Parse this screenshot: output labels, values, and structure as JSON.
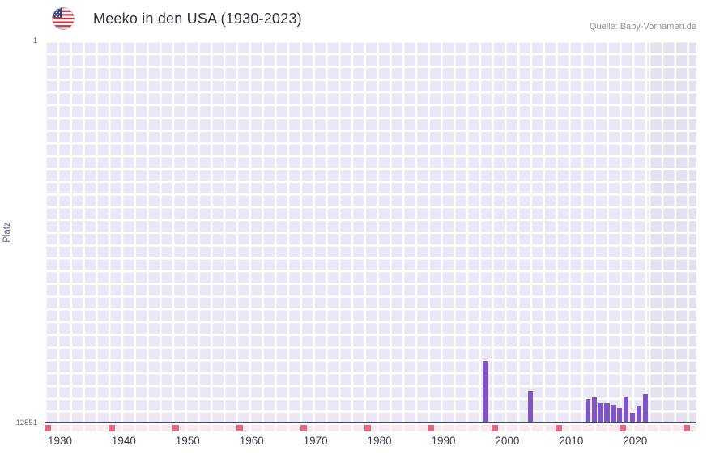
{
  "header": {
    "flag_icon": "us-flag"
  },
  "chart_data": {
    "type": "bar",
    "title": "Meeko in den USA (1930-2023)",
    "source": "Quelle: Baby-Vornamen.de",
    "xlabel": "",
    "ylabel": "Platz",
    "grid": true,
    "legend": "none",
    "y_axis": {
      "inverted": true,
      "best_rank": 1,
      "worst_rank": 12551,
      "tick_labels": [
        "1",
        "12551"
      ]
    },
    "x_axis": {
      "range": [
        1929.5,
        2031.5
      ],
      "tick_labels": [
        1930,
        1940,
        1950,
        1960,
        1970,
        1980,
        1990,
        2000,
        2010,
        2020
      ],
      "tick_mark_years": [
        1930,
        1940,
        1950,
        1960,
        1970,
        1980,
        1990,
        2000,
        2010,
        2020,
        2030
      ]
    },
    "no_data_band_from_year": 2024,
    "points": [
      {
        "year": 1998,
        "rank": 10550
      },
      {
        "year": 2005,
        "rank": 11550
      },
      {
        "year": 2014,
        "rank": 11800
      },
      {
        "year": 2015,
        "rank": 11750
      },
      {
        "year": 2016,
        "rank": 11950
      },
      {
        "year": 2017,
        "rank": 11950
      },
      {
        "year": 2018,
        "rank": 12000
      },
      {
        "year": 2019,
        "rank": 12100
      },
      {
        "year": 2020,
        "rank": 11750
      },
      {
        "year": 2021,
        "rank": 12250
      },
      {
        "year": 2022,
        "rank": 12050
      },
      {
        "year": 2023,
        "rank": 11650
      }
    ],
    "colors": {
      "bar": "#7e57c2",
      "plot_bg": "#ebe8f5",
      "grid": "#ffffff",
      "future_band": "#e4e2ec",
      "tick_red": "#e0697e",
      "strip_pink": "#fbe9ef",
      "axis_line": "#44445a"
    }
  }
}
